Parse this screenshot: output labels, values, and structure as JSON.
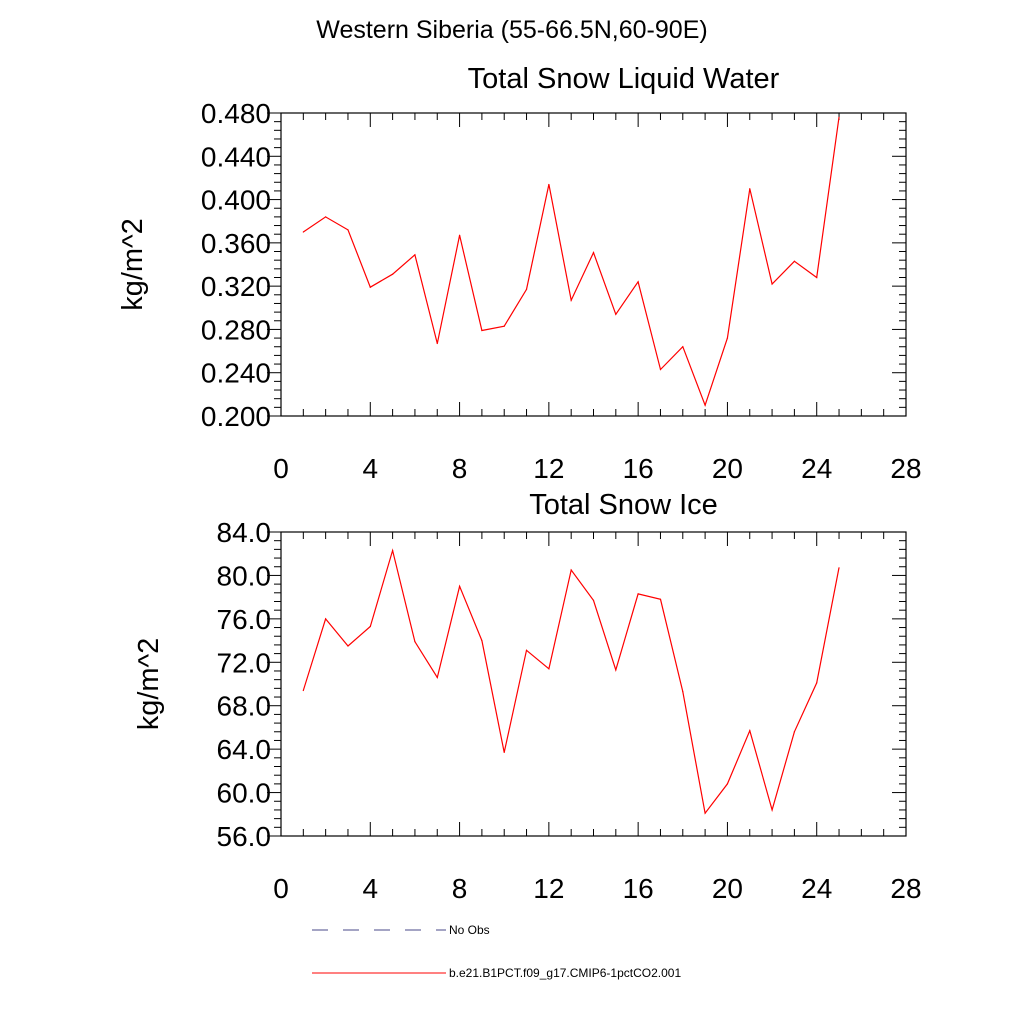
{
  "figure": {
    "suptitle": "Western Siberia (55-66.5N,60-90E)"
  },
  "chart_data": [
    {
      "type": "line",
      "title": "Total Snow Liquid Water",
      "xlabel": "",
      "ylabel": "kg/m^2",
      "xlim": [
        0,
        28
      ],
      "ylim": [
        0.2,
        0.48
      ],
      "x_ticks": [
        "0",
        "4",
        "8",
        "12",
        "16",
        "20",
        "24",
        "28"
      ],
      "y_ticks": [
        "0.200",
        "0.240",
        "0.280",
        "0.320",
        "0.360",
        "0.400",
        "0.440",
        "0.480"
      ],
      "series": [
        {
          "name": "b.e21.B1PCT.f09_g17.CMIP6-1pctCO2.001",
          "color": "#ff0000",
          "x": [
            1,
            2,
            3,
            4,
            5,
            6,
            7,
            8,
            9,
            10,
            11,
            12,
            13,
            14,
            15,
            16,
            17,
            18,
            19,
            20,
            21,
            22,
            23,
            24,
            25
          ],
          "y": [
            0.37,
            0.384,
            0.372,
            0.319,
            0.331,
            0.349,
            0.267,
            0.367,
            0.279,
            0.283,
            0.317,
            0.414,
            0.307,
            0.351,
            0.294,
            0.324,
            0.243,
            0.264,
            0.21,
            0.272,
            0.41,
            0.322,
            0.343,
            0.328,
            0.476
          ]
        }
      ]
    },
    {
      "type": "line",
      "title": "Total Snow Ice",
      "xlabel": "",
      "ylabel": "kg/m^2",
      "xlim": [
        0,
        28
      ],
      "ylim": [
        56,
        84
      ],
      "x_ticks": [
        "0",
        "4",
        "8",
        "12",
        "16",
        "20",
        "24",
        "28"
      ],
      "y_ticks": [
        "56.0",
        "60.0",
        "64.0",
        "68.0",
        "72.0",
        "76.0",
        "80.0",
        "84.0"
      ],
      "series": [
        {
          "name": "b.e21.B1PCT.f09_g17.CMIP6-1pctCO2.001",
          "color": "#ff0000",
          "x": [
            1,
            2,
            3,
            4,
            5,
            6,
            7,
            8,
            9,
            10,
            11,
            12,
            13,
            14,
            15,
            16,
            17,
            18,
            19,
            20,
            21,
            22,
            23,
            24,
            25
          ],
          "y": [
            69.4,
            76.0,
            73.5,
            75.3,
            82.3,
            73.9,
            70.6,
            79.0,
            74.0,
            63.7,
            73.1,
            71.4,
            80.5,
            77.7,
            71.3,
            78.3,
            77.8,
            69.3,
            58.1,
            60.8,
            65.7,
            58.4,
            65.6,
            70.1,
            80.7
          ]
        }
      ]
    }
  ],
  "legend": {
    "items": [
      {
        "label": "No Obs",
        "color": "#4a4a8a",
        "style": "dashed"
      },
      {
        "label": "b.e21.B1PCT.f09_g17.CMIP6-1pctCO2.001",
        "color": "#ff0000",
        "style": "solid"
      }
    ]
  }
}
